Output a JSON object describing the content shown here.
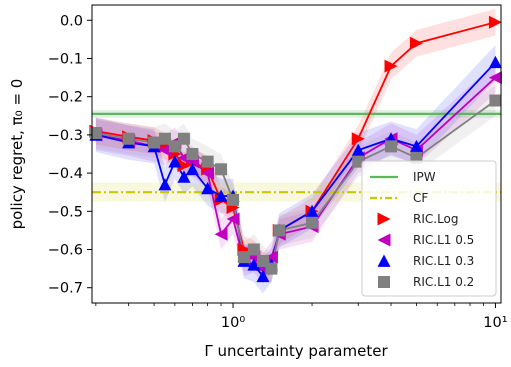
{
  "chart_data": {
    "type": "line",
    "xlabel": "Γ uncertainty parameter",
    "ylabel": "policy regret, π₀ = 0",
    "xscale": "log",
    "xlim": [
      0.29,
      10.5
    ],
    "ylim": [
      -0.74,
      0.04
    ],
    "yticks": [
      0.0,
      -0.1,
      -0.2,
      -0.3,
      -0.4,
      -0.5,
      -0.6,
      -0.7
    ],
    "ytick_labels": [
      "0.0",
      "−0.1",
      "−0.2",
      "−0.3",
      "−0.4",
      "−0.5",
      "−0.6",
      "−0.7"
    ],
    "xticks": [
      1,
      10
    ],
    "xtick_labels": [
      "10⁰",
      "10¹"
    ],
    "grid": false,
    "legend_position": "lower-right",
    "hlines": [
      {
        "name": "IPW",
        "y": -0.245,
        "band": [
          -0.255,
          -0.235
        ],
        "color": "#5cb85c",
        "style": "solid"
      },
      {
        "name": "CF",
        "y": -0.45,
        "band": [
          -0.475,
          -0.425
        ],
        "color": "#c8c800",
        "style": "dashdot"
      }
    ],
    "series": [
      {
        "name": "RIC.Log",
        "color": "#ff0000",
        "marker": "triangle-right",
        "x": [
          0.3,
          0.4,
          0.5,
          0.55,
          0.6,
          0.65,
          0.7,
          0.8,
          0.9,
          1.0,
          1.1,
          1.2,
          1.3,
          1.4,
          1.5,
          2.0,
          3.0,
          4.0,
          5.0,
          10.0
        ],
        "y": [
          -0.29,
          -0.305,
          -0.315,
          -0.33,
          -0.35,
          -0.38,
          -0.37,
          -0.39,
          -0.47,
          -0.49,
          -0.6,
          -0.61,
          -0.64,
          -0.65,
          -0.55,
          -0.5,
          -0.31,
          -0.12,
          -0.06,
          -0.005
        ],
        "band_width": 0.035
      },
      {
        "name": "RIC.L1 0.5",
        "color": "#bf00bf",
        "marker": "triangle-left",
        "x": [
          0.3,
          0.4,
          0.5,
          0.55,
          0.6,
          0.65,
          0.7,
          0.8,
          0.9,
          1.0,
          1.1,
          1.2,
          1.3,
          1.4,
          1.5,
          2.0,
          3.0,
          4.0,
          5.0,
          10.0
        ],
        "y": [
          -0.3,
          -0.315,
          -0.33,
          -0.34,
          -0.32,
          -0.36,
          -0.37,
          -0.4,
          -0.56,
          -0.52,
          -0.63,
          -0.62,
          -0.65,
          -0.62,
          -0.56,
          -0.54,
          -0.36,
          -0.31,
          -0.34,
          -0.15
        ],
        "band_width": 0.04
      },
      {
        "name": "RIC.L1 0.3",
        "color": "#0000ff",
        "marker": "triangle-up",
        "x": [
          0.3,
          0.4,
          0.5,
          0.55,
          0.6,
          0.65,
          0.7,
          0.8,
          0.9,
          1.0,
          1.1,
          1.2,
          1.3,
          1.4,
          1.5,
          2.0,
          3.0,
          4.0,
          5.0,
          10.0
        ],
        "y": [
          -0.3,
          -0.32,
          -0.33,
          -0.43,
          -0.37,
          -0.41,
          -0.39,
          -0.44,
          -0.46,
          -0.46,
          -0.63,
          -0.64,
          -0.67,
          -0.64,
          -0.55,
          -0.5,
          -0.34,
          -0.31,
          -0.33,
          -0.11
        ],
        "band_width": 0.045
      },
      {
        "name": "RIC.L1 0.2",
        "color": "#808080",
        "marker": "square",
        "x": [
          0.3,
          0.4,
          0.5,
          0.55,
          0.6,
          0.65,
          0.7,
          0.8,
          0.9,
          1.0,
          1.1,
          1.2,
          1.3,
          1.4,
          1.5,
          2.0,
          3.0,
          4.0,
          5.0,
          10.0
        ],
        "y": [
          -0.295,
          -0.31,
          -0.32,
          -0.31,
          -0.33,
          -0.31,
          -0.35,
          -0.37,
          -0.39,
          -0.47,
          -0.62,
          -0.6,
          -0.63,
          -0.65,
          -0.55,
          -0.53,
          -0.37,
          -0.33,
          -0.36,
          -0.21
        ],
        "band_width": 0.04
      }
    ]
  }
}
